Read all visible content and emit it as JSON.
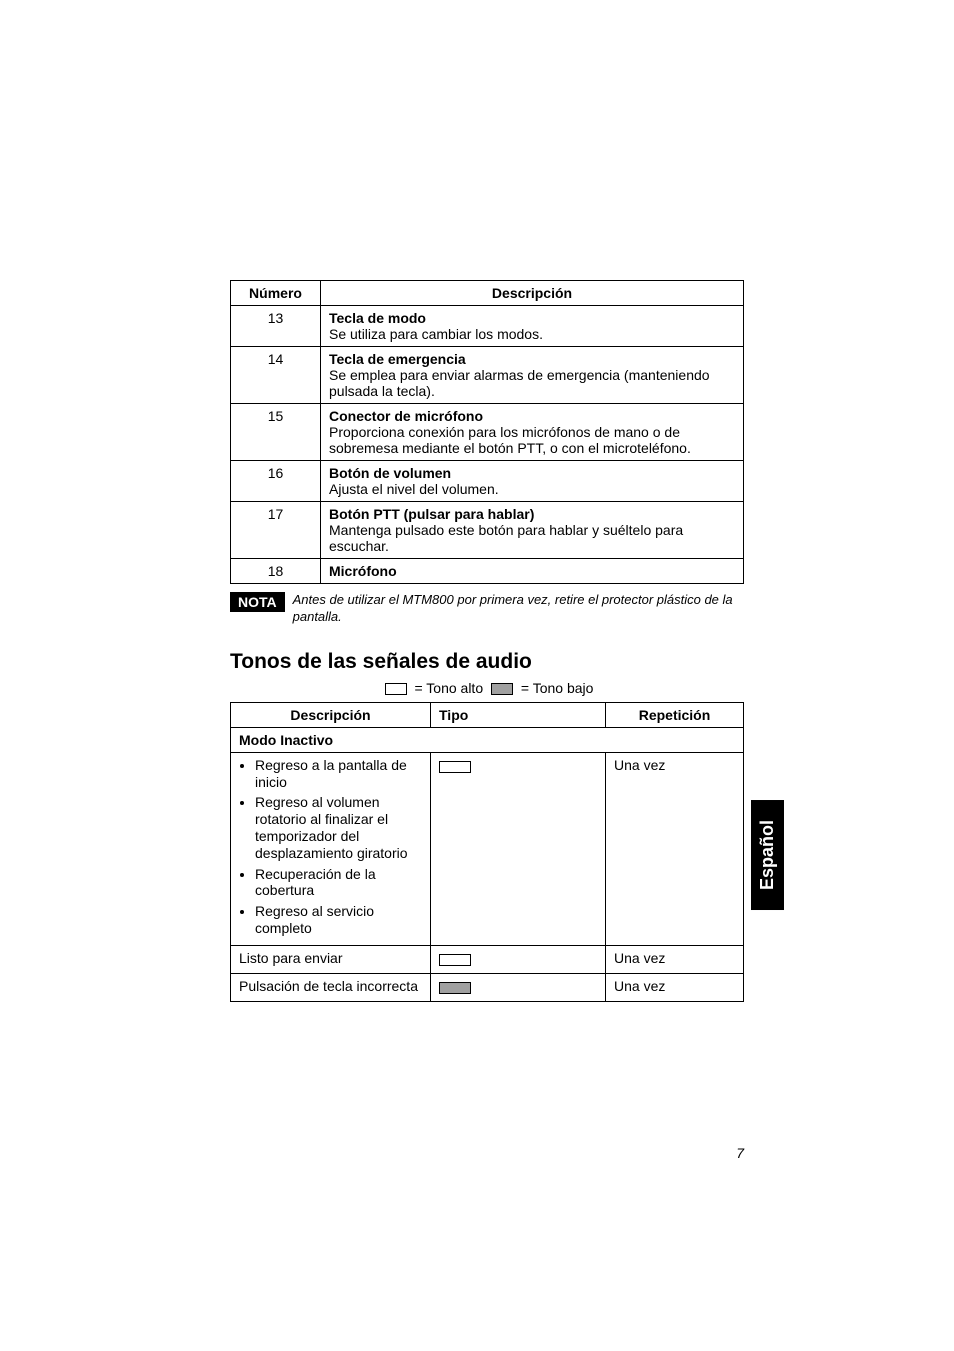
{
  "table1": {
    "headers": {
      "num": "Número",
      "desc": "Descripción"
    },
    "rows": [
      {
        "num": "13",
        "title": "Tecla de modo",
        "body": "Se utiliza para cambiar los modos."
      },
      {
        "num": "14",
        "title": "Tecla de emergencia",
        "body": "Se emplea para enviar alarmas de emergencia (manteniendo pulsada la tecla)."
      },
      {
        "num": "15",
        "title": "Conector de micrófono",
        "body": "Proporciona conexión para los micrófonos de mano o de sobremesa mediante el botón PTT, o con el microteléfono."
      },
      {
        "num": "16",
        "title": "Botón de volumen",
        "body": "Ajusta el nivel del volumen."
      },
      {
        "num": "17",
        "title": "Botón PTT (pulsar para hablar)",
        "body": "Mantenga pulsado este botón para hablar y suéltelo para escuchar."
      },
      {
        "num": "18",
        "title": "Micrófono",
        "body": ""
      }
    ]
  },
  "nota": {
    "label": "NOTA",
    "text": "Antes de utilizar el MTM800 por primera vez, retire el protector plástico de la pantalla."
  },
  "section_title": "Tonos de las señales de audio",
  "legend": {
    "high": "= Tono alto",
    "low": "= Tono bajo",
    "high_color": "#ffffff",
    "low_color": "#a0a0a0"
  },
  "table2": {
    "headers": {
      "desc": "Descripción",
      "tipo": "Tipo",
      "rep": "Repetición"
    },
    "subheader": "Modo Inactivo",
    "row1": {
      "bullets": [
        "Regreso a la pantalla de inicio",
        "Regreso al volumen rotatorio al finalizar el temporizador del desplazamiento giratorio",
        "Recuperación de la cobertura",
        "Regreso al servicio completo"
      ],
      "tone": "high",
      "rep": "Una vez"
    },
    "row2": {
      "desc": "Listo para enviar",
      "tone": "high",
      "rep": "Una vez"
    },
    "row3": {
      "desc": "Pulsación de tecla incorrecta",
      "tone": "low",
      "rep": "Una vez"
    }
  },
  "side_tab": "Español",
  "page_number": "7"
}
